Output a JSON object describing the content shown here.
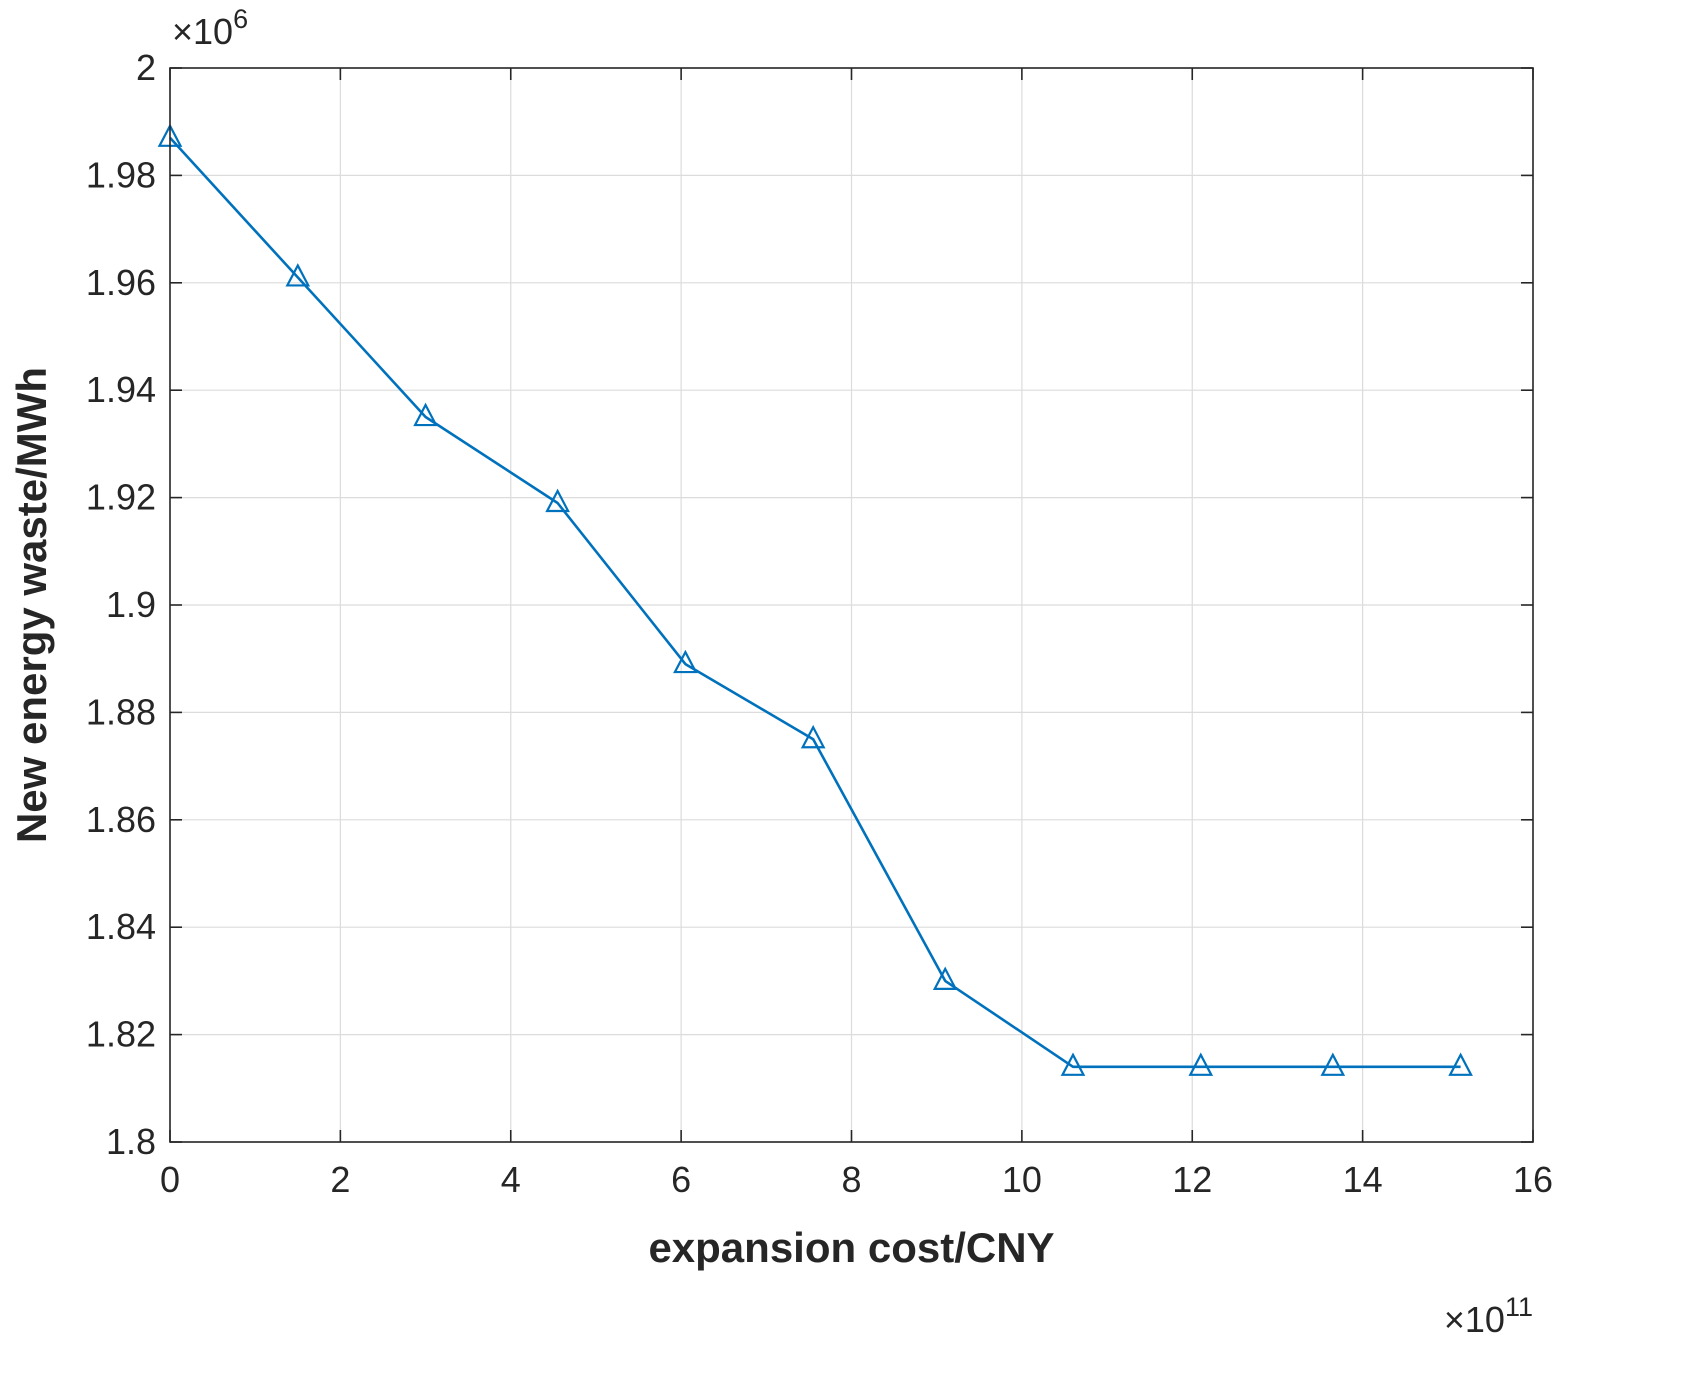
{
  "chart_data": {
    "type": "line",
    "title": "",
    "xlabel": "expansion cost/CNY",
    "ylabel": "New energy waste/MWh",
    "scale_prefix": "×10",
    "x_scale_exponent": "11",
    "y_scale_exponent": "6",
    "x_unit": "CNY, values in multiples of 1e11",
    "y_unit": "MWh, values in multiples of 1e6",
    "xlim": [
      0,
      16
    ],
    "ylim": [
      1.8,
      2.0
    ],
    "grid": true,
    "legend": "none",
    "grid_color": "#dcdcdc",
    "axis_color": "#262626",
    "background": "#ffffff",
    "xticks": {
      "values": [
        0,
        2,
        4,
        6,
        8,
        10,
        12,
        14,
        16
      ],
      "labels": [
        "0",
        "2",
        "4",
        "6",
        "8",
        "10",
        "12",
        "14",
        "16"
      ]
    },
    "yticks": {
      "values": [
        1.8,
        1.82,
        1.84,
        1.86,
        1.88,
        1.9,
        1.92,
        1.94,
        1.96,
        1.98,
        2.0
      ],
      "labels": [
        "1.8",
        "1.82",
        "1.84",
        "1.86",
        "1.88",
        "1.9",
        "1.92",
        "1.94",
        "1.96",
        "1.98",
        "2"
      ]
    },
    "series": [
      {
        "name": "new-energy-waste-vs-expansion-cost",
        "color": "#0072BD",
        "marker": "triangle-up",
        "x": [
          0,
          1.5,
          3.0,
          4.55,
          6.05,
          7.55,
          9.1,
          10.6,
          12.1,
          13.65,
          15.15
        ],
        "y": [
          1.987,
          1.961,
          1.935,
          1.919,
          1.889,
          1.875,
          1.83,
          1.814,
          1.814,
          1.814,
          1.814
        ]
      }
    ]
  }
}
